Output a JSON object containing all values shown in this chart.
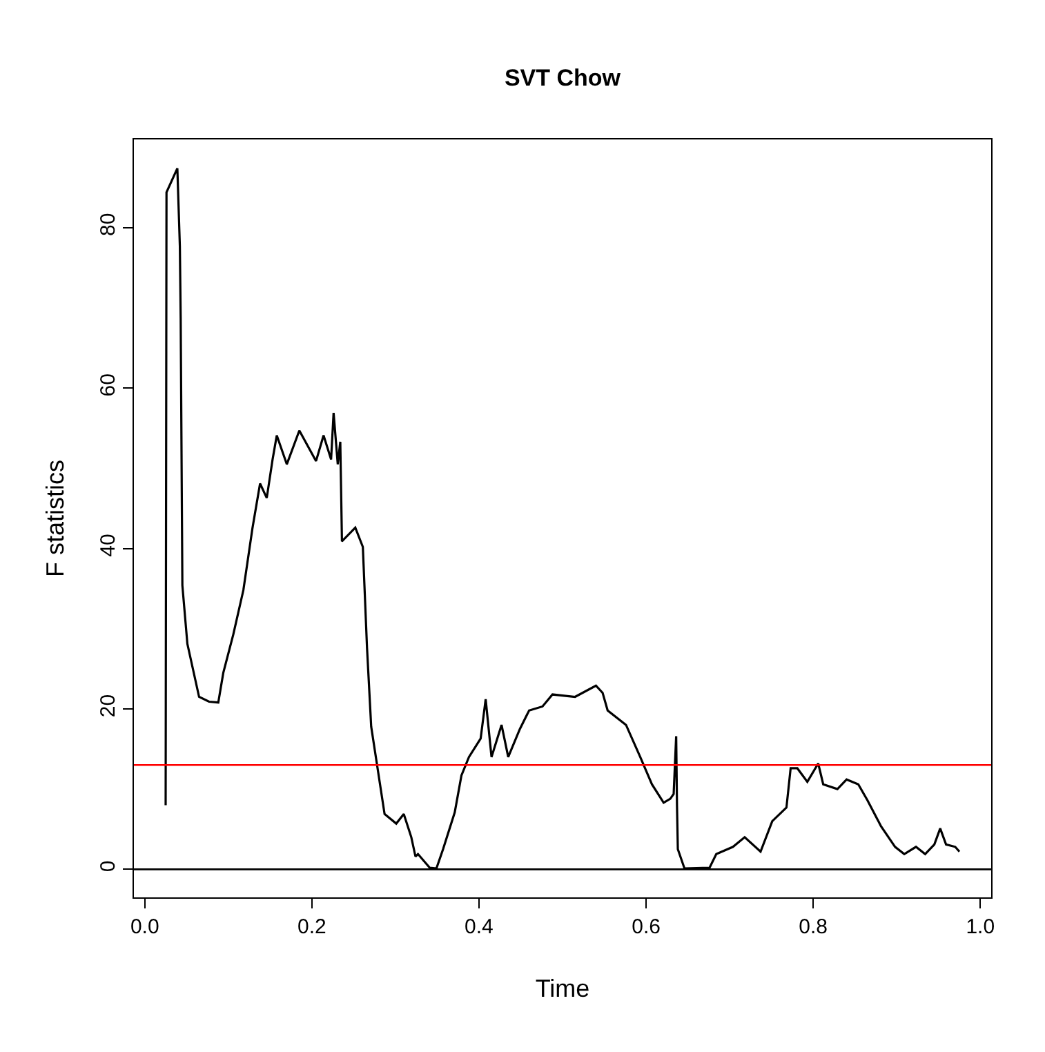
{
  "chart_data": {
    "type": "line",
    "title": "SVT Chow",
    "xlabel": "Time",
    "ylabel": "F statistics",
    "x": [
      0.025,
      0.026,
      0.039,
      0.042,
      0.043,
      0.045,
      0.051,
      0.065,
      0.077,
      0.088,
      0.094,
      0.106,
      0.118,
      0.129,
      0.138,
      0.146,
      0.153,
      0.158,
      0.17,
      0.185,
      0.205,
      0.214,
      0.223,
      0.226,
      0.231,
      0.234,
      0.236,
      0.252,
      0.261,
      0.266,
      0.271,
      0.287,
      0.301,
      0.31,
      0.319,
      0.324,
      0.327,
      0.341,
      0.349,
      0.357,
      0.371,
      0.379,
      0.388,
      0.402,
      0.408,
      0.415,
      0.427,
      0.435,
      0.449,
      0.46,
      0.476,
      0.488,
      0.515,
      0.54,
      0.548,
      0.554,
      0.576,
      0.593,
      0.607,
      0.621,
      0.629,
      0.633,
      0.636,
      0.637,
      0.638,
      0.646,
      0.676,
      0.684,
      0.704,
      0.718,
      0.737,
      0.751,
      0.768,
      0.773,
      0.781,
      0.793,
      0.806,
      0.812,
      0.829,
      0.84,
      0.854,
      0.865,
      0.881,
      0.898,
      0.909,
      0.923,
      0.934,
      0.945,
      0.952,
      0.959,
      0.97,
      0.975
    ],
    "series": [
      {
        "color": "#000000",
        "values": [
          8,
          84.4,
          87.4,
          77.7,
          68.7,
          35.4,
          28.1,
          21.5,
          20.9,
          20.8,
          24.5,
          29.3,
          34.8,
          42.6,
          48.1,
          46.3,
          51.1,
          54.1,
          50.5,
          54.7,
          50.9,
          54.1,
          51.1,
          56.9,
          50.5,
          53.3,
          40.9,
          42.6,
          40.2,
          27.6,
          17.8,
          6.9,
          5.7,
          6.9,
          4.0,
          1.6,
          1.9,
          0.2,
          0.1,
          2.5,
          7.1,
          11.7,
          14.0,
          16.3,
          21.2,
          14.0,
          18.0,
          14.0,
          17.5,
          19.8,
          20.3,
          21.8,
          21.5,
          22.9,
          22.0,
          19.8,
          18.0,
          14.0,
          10.6,
          8.3,
          8.8,
          9.4,
          16.6,
          7.9,
          2.5,
          0.1,
          0.2,
          1.9,
          2.8,
          4.0,
          2.2,
          6.0,
          7.7,
          12.6,
          12.6,
          10.9,
          13.2,
          10.6,
          10.0,
          11.2,
          10.6,
          8.6,
          5.4,
          2.8,
          1.9,
          2.8,
          1.9,
          3.1,
          5.1,
          3.1,
          2.8,
          2.2
        ]
      }
    ],
    "ref_lines": [
      {
        "axis": "y",
        "value": 0,
        "color": "#000000"
      },
      {
        "axis": "y",
        "value": 13,
        "color": "#ff0000"
      }
    ],
    "xlim": [
      -0.013,
      1.013
    ],
    "ylim": [
      -3.5,
      91
    ],
    "xticks": [
      {
        "value": 0,
        "label": "0.0"
      },
      0.2,
      0.4,
      0.6,
      0.8,
      {
        "value": 1,
        "label": "1.0"
      }
    ],
    "yticks": [
      0,
      20,
      40,
      60,
      80
    ],
    "grid": false,
    "marker": "none",
    "line_style": "solid"
  }
}
